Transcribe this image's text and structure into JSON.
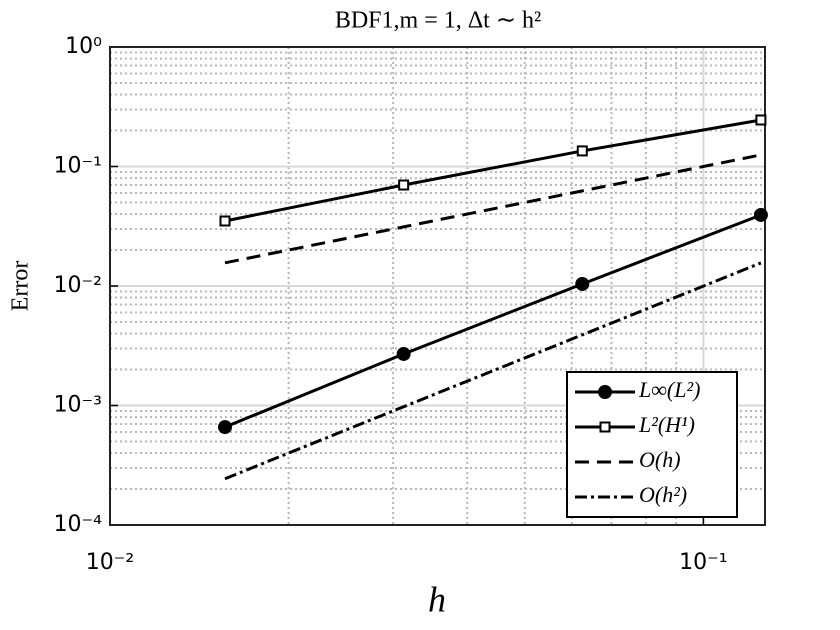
{
  "chart_data": {
    "type": "line",
    "title": "BDF1,m = 1, Δt ∼ h²",
    "xlabel": "h",
    "ylabel": "Error",
    "x": [
      0.015625,
      0.03125,
      0.0625,
      0.125
    ],
    "series": [
      {
        "name": "L∞(L²)",
        "color": "#000000",
        "marker": "circle",
        "dash": "solid",
        "values": [
          0.00066,
          0.0027,
          0.0104,
          0.0393
        ]
      },
      {
        "name": "L²(H¹)",
        "color": "#000000",
        "marker": "square",
        "dash": "solid",
        "values": [
          0.035,
          0.07,
          0.135,
          0.245
        ]
      },
      {
        "name": "O(h)",
        "color": "#000000",
        "marker": "none",
        "dash": "dashed",
        "values": [
          0.015625,
          0.03125,
          0.0625,
          0.125
        ]
      },
      {
        "name": "O(h²)",
        "color": "#000000",
        "marker": "none",
        "dash": "dashdot",
        "values": [
          0.000244,
          0.000977,
          0.0039,
          0.0156
        ]
      }
    ],
    "xscale": "log",
    "yscale": "log",
    "xlim": [
      0.01,
      0.127
    ],
    "ylim": [
      0.0001,
      1
    ],
    "xticks": [
      {
        "value": 0.01,
        "label": "10⁻²"
      },
      {
        "value": 0.1,
        "label": "10⁻¹"
      }
    ],
    "yticks": [
      {
        "value": 0.0001,
        "label": "10⁻⁴"
      },
      {
        "value": 0.001,
        "label": "10⁻³"
      },
      {
        "value": 0.01,
        "label": "10⁻²"
      },
      {
        "value": 0.1,
        "label": "10⁻¹"
      },
      {
        "value": 1,
        "label": "10⁰"
      }
    ],
    "grid": true,
    "minor_grid": true,
    "legend": "southeast"
  }
}
